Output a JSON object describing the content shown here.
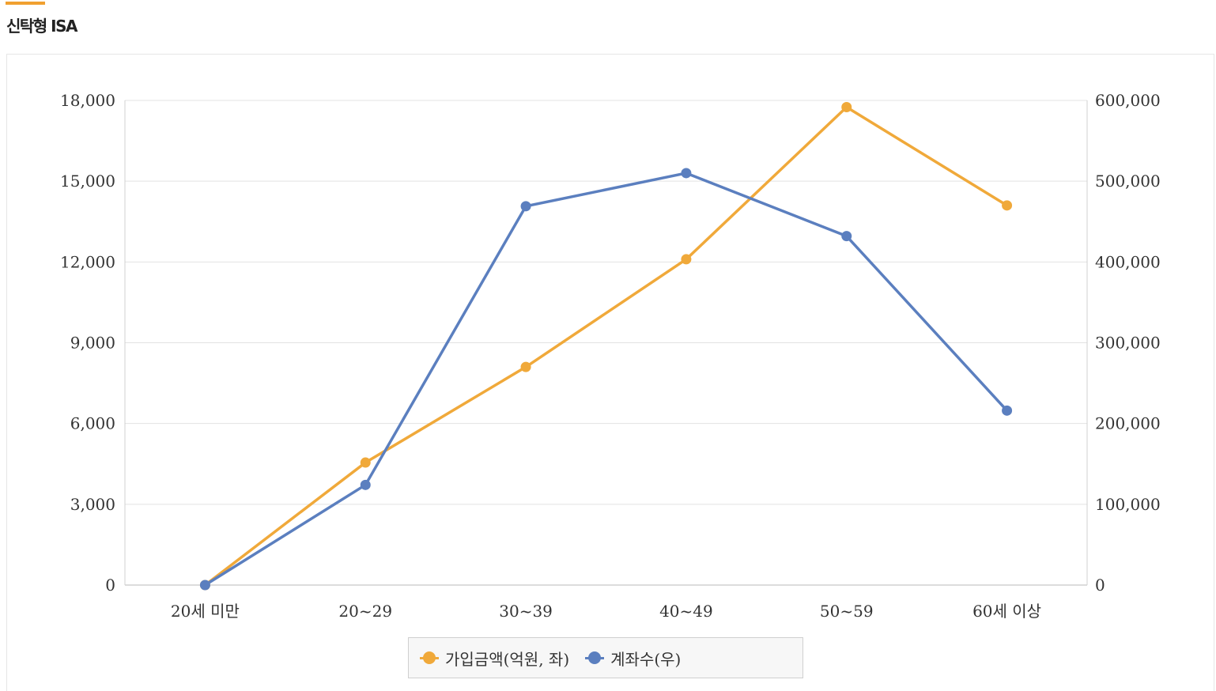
{
  "page": {
    "title": "신탁형 ISA",
    "accent_color": "#f0a030"
  },
  "chart_data": {
    "type": "line",
    "title": "",
    "categories": [
      "20세 미만",
      "20~29",
      "30~39",
      "40~49",
      "50~59",
      "60세 이상"
    ],
    "y_left": {
      "min": 0,
      "max": 18000,
      "ticks": [
        "0",
        "3,000",
        "6,000",
        "9,000",
        "12,000",
        "15,000",
        "18,000"
      ]
    },
    "y_right": {
      "min": 0,
      "max": 600000,
      "ticks": [
        "0",
        "100,000",
        "200,000",
        "300,000",
        "400,000",
        "500,000",
        "600,000"
      ]
    },
    "grid": true,
    "legend_position": "bottom",
    "series": [
      {
        "name": "가입금액(억원, 좌)",
        "axis": "left",
        "color": "#f0a93a",
        "values": [
          0,
          4550,
          8100,
          12100,
          17750,
          14100
        ]
      },
      {
        "name": "계좌수(우)",
        "axis": "right",
        "color": "#5b7fbf",
        "values": [
          0,
          124000,
          469000,
          510000,
          432000,
          216000
        ]
      }
    ]
  }
}
